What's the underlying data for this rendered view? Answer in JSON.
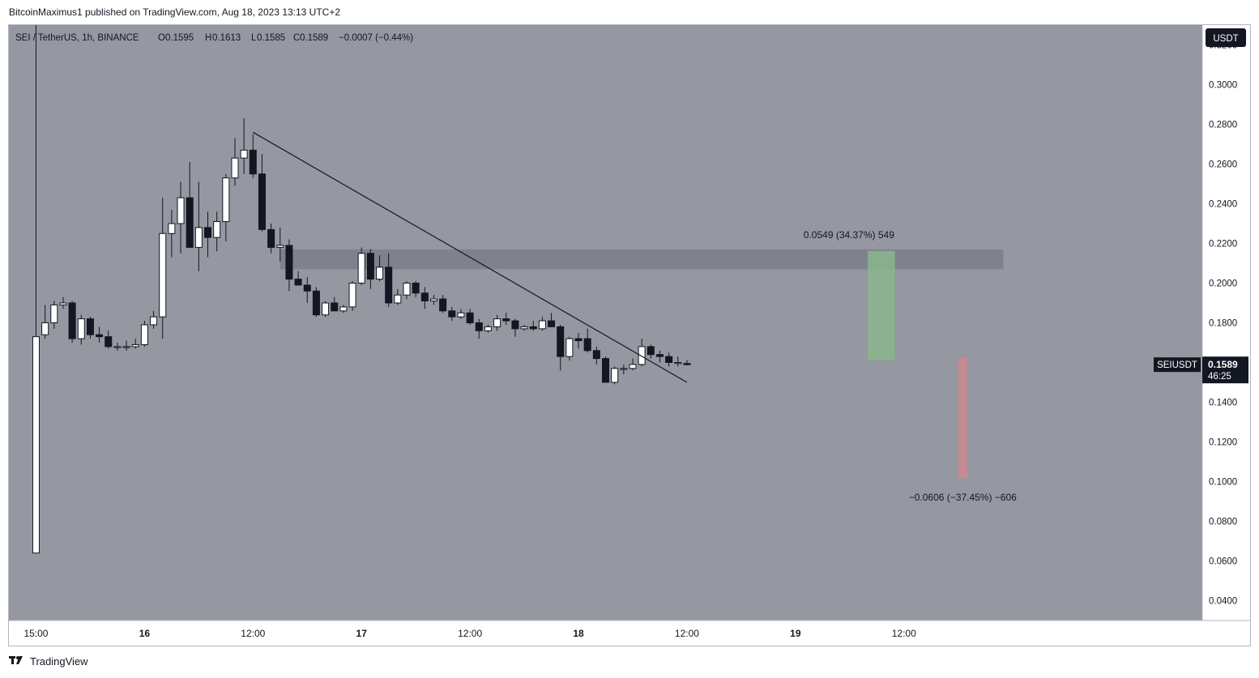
{
  "attribution": "BitcoinMaximus1 published on TradingView.com, Aug 18, 2023 13:13 UTC+2",
  "footer": {
    "brand": "TradingView",
    "logo_icon": "tradingview-logo-icon"
  },
  "colors": {
    "background": "#9598a1",
    "up_body": "#ffffff",
    "down_body": "#131722",
    "wick": "#131722",
    "zone": "#787b86",
    "long_target": "#8ab48c",
    "short_target": "#c98a8f",
    "label_bg": "#131722"
  },
  "legend": {
    "symbol": "SEI / TetherUS, 1h, BINANCE",
    "o_label": "O",
    "o_value": "0.1595",
    "h_label": "H",
    "h_value": "0.1613",
    "l_label": "L",
    "l_value": "0.1585",
    "c_label": "C",
    "c_value": "0.1589",
    "change": "−0.0007 (−0.44%)"
  },
  "currency_button": "USDT",
  "price_tag": {
    "symbol": "SEIUSDT",
    "price": "0.1589",
    "countdown": "46:25"
  },
  "measure_up": "0.0549 (34.37%) 549",
  "measure_down": "−0.0606 (−37.45%) −606",
  "chart_data": {
    "type": "candlestick",
    "symbol": "SEI / TetherUS",
    "interval": "1h",
    "exchange": "BINANCE",
    "y_axis": {
      "min": 0.03,
      "max": 0.33,
      "ticks": [
        "0.0400",
        "0.0600",
        "0.0800",
        "0.1000",
        "0.1200",
        "0.1400",
        "0.1600",
        "0.1800",
        "0.2000",
        "0.2200",
        "0.2400",
        "0.2600",
        "0.2800",
        "0.3000",
        "0.3200"
      ],
      "tick_values": [
        0.04,
        0.06,
        0.08,
        0.1,
        0.12,
        0.14,
        0.16,
        0.18,
        0.2,
        0.22,
        0.24,
        0.26,
        0.28,
        0.3,
        0.32
      ]
    },
    "x_axis": {
      "bar_min": -3,
      "bar_max": 129,
      "ticks": [
        {
          "label": "15:00",
          "bar": 0
        },
        {
          "label": "16",
          "bar": 12
        },
        {
          "label": "12:00",
          "bar": 24
        },
        {
          "label": "17",
          "bar": 36
        },
        {
          "label": "12:00",
          "bar": 48
        },
        {
          "label": "18",
          "bar": 60
        },
        {
          "label": "12:00",
          "bar": 72
        },
        {
          "label": "19",
          "bar": 84
        },
        {
          "label": "12:00",
          "bar": 96
        }
      ]
    },
    "candles": [
      {
        "o": 0.064,
        "h": 0.33,
        "l": 0.064,
        "c": 0.173
      },
      {
        "o": 0.174,
        "h": 0.189,
        "l": 0.172,
        "c": 0.18
      },
      {
        "o": 0.18,
        "h": 0.191,
        "l": 0.177,
        "c": 0.189
      },
      {
        "o": 0.189,
        "h": 0.193,
        "l": 0.187,
        "c": 0.19
      },
      {
        "o": 0.19,
        "h": 0.191,
        "l": 0.17,
        "c": 0.172
      },
      {
        "o": 0.172,
        "h": 0.184,
        "l": 0.169,
        "c": 0.182
      },
      {
        "o": 0.182,
        "h": 0.183,
        "l": 0.172,
        "c": 0.174
      },
      {
        "o": 0.174,
        "h": 0.178,
        "l": 0.17,
        "c": 0.173
      },
      {
        "o": 0.173,
        "h": 0.176,
        "l": 0.167,
        "c": 0.168
      },
      {
        "o": 0.168,
        "h": 0.17,
        "l": 0.166,
        "c": 0.168
      },
      {
        "o": 0.168,
        "h": 0.171,
        "l": 0.166,
        "c": 0.168
      },
      {
        "o": 0.168,
        "h": 0.172,
        "l": 0.167,
        "c": 0.169
      },
      {
        "o": 0.169,
        "h": 0.181,
        "l": 0.168,
        "c": 0.179
      },
      {
        "o": 0.179,
        "h": 0.186,
        "l": 0.177,
        "c": 0.183
      },
      {
        "o": 0.183,
        "h": 0.243,
        "l": 0.172,
        "c": 0.225
      },
      {
        "o": 0.225,
        "h": 0.237,
        "l": 0.213,
        "c": 0.23
      },
      {
        "o": 0.23,
        "h": 0.251,
        "l": 0.215,
        "c": 0.243
      },
      {
        "o": 0.243,
        "h": 0.261,
        "l": 0.218,
        "c": 0.218
      },
      {
        "o": 0.218,
        "h": 0.251,
        "l": 0.206,
        "c": 0.228
      },
      {
        "o": 0.228,
        "h": 0.236,
        "l": 0.213,
        "c": 0.223
      },
      {
        "o": 0.223,
        "h": 0.236,
        "l": 0.216,
        "c": 0.231
      },
      {
        "o": 0.231,
        "h": 0.255,
        "l": 0.221,
        "c": 0.253
      },
      {
        "o": 0.253,
        "h": 0.273,
        "l": 0.249,
        "c": 0.263
      },
      {
        "o": 0.263,
        "h": 0.283,
        "l": 0.255,
        "c": 0.267
      },
      {
        "o": 0.267,
        "h": 0.275,
        "l": 0.253,
        "c": 0.255
      },
      {
        "o": 0.255,
        "h": 0.265,
        "l": 0.226,
        "c": 0.227
      },
      {
        "o": 0.227,
        "h": 0.23,
        "l": 0.215,
        "c": 0.218
      },
      {
        "o": 0.218,
        "h": 0.228,
        "l": 0.211,
        "c": 0.219
      },
      {
        "o": 0.219,
        "h": 0.222,
        "l": 0.196,
        "c": 0.202
      },
      {
        "o": 0.202,
        "h": 0.206,
        "l": 0.199,
        "c": 0.199
      },
      {
        "o": 0.199,
        "h": 0.203,
        "l": 0.19,
        "c": 0.196
      },
      {
        "o": 0.196,
        "h": 0.198,
        "l": 0.183,
        "c": 0.184
      },
      {
        "o": 0.184,
        "h": 0.191,
        "l": 0.183,
        "c": 0.19
      },
      {
        "o": 0.19,
        "h": 0.193,
        "l": 0.186,
        "c": 0.186
      },
      {
        "o": 0.186,
        "h": 0.189,
        "l": 0.185,
        "c": 0.188
      },
      {
        "o": 0.188,
        "h": 0.201,
        "l": 0.186,
        "c": 0.2
      },
      {
        "o": 0.2,
        "h": 0.218,
        "l": 0.199,
        "c": 0.215
      },
      {
        "o": 0.215,
        "h": 0.217,
        "l": 0.197,
        "c": 0.202
      },
      {
        "o": 0.202,
        "h": 0.214,
        "l": 0.201,
        "c": 0.208
      },
      {
        "o": 0.208,
        "h": 0.215,
        "l": 0.188,
        "c": 0.19
      },
      {
        "o": 0.19,
        "h": 0.197,
        "l": 0.189,
        "c": 0.194
      },
      {
        "o": 0.194,
        "h": 0.201,
        "l": 0.192,
        "c": 0.2
      },
      {
        "o": 0.2,
        "h": 0.201,
        "l": 0.193,
        "c": 0.195
      },
      {
        "o": 0.195,
        "h": 0.198,
        "l": 0.187,
        "c": 0.191
      },
      {
        "o": 0.191,
        "h": 0.194,
        "l": 0.189,
        "c": 0.192
      },
      {
        "o": 0.192,
        "h": 0.194,
        "l": 0.185,
        "c": 0.186
      },
      {
        "o": 0.186,
        "h": 0.188,
        "l": 0.181,
        "c": 0.183
      },
      {
        "o": 0.183,
        "h": 0.187,
        "l": 0.182,
        "c": 0.185
      },
      {
        "o": 0.185,
        "h": 0.187,
        "l": 0.179,
        "c": 0.18
      },
      {
        "o": 0.18,
        "h": 0.182,
        "l": 0.172,
        "c": 0.176
      },
      {
        "o": 0.176,
        "h": 0.179,
        "l": 0.175,
        "c": 0.178
      },
      {
        "o": 0.178,
        "h": 0.184,
        "l": 0.176,
        "c": 0.182
      },
      {
        "o": 0.182,
        "h": 0.185,
        "l": 0.179,
        "c": 0.181
      },
      {
        "o": 0.181,
        "h": 0.182,
        "l": 0.173,
        "c": 0.177
      },
      {
        "o": 0.177,
        "h": 0.179,
        "l": 0.176,
        "c": 0.178
      },
      {
        "o": 0.178,
        "h": 0.181,
        "l": 0.176,
        "c": 0.177
      },
      {
        "o": 0.177,
        "h": 0.183,
        "l": 0.176,
        "c": 0.181
      },
      {
        "o": 0.181,
        "h": 0.185,
        "l": 0.178,
        "c": 0.178
      },
      {
        "o": 0.178,
        "h": 0.179,
        "l": 0.156,
        "c": 0.163
      },
      {
        "o": 0.163,
        "h": 0.173,
        "l": 0.161,
        "c": 0.172
      },
      {
        "o": 0.172,
        "h": 0.175,
        "l": 0.167,
        "c": 0.171
      },
      {
        "o": 0.172,
        "h": 0.177,
        "l": 0.165,
        "c": 0.166
      },
      {
        "o": 0.166,
        "h": 0.168,
        "l": 0.159,
        "c": 0.162
      },
      {
        "o": 0.162,
        "h": 0.163,
        "l": 0.15,
        "c": 0.15
      },
      {
        "o": 0.15,
        "h": 0.158,
        "l": 0.149,
        "c": 0.157
      },
      {
        "o": 0.157,
        "h": 0.159,
        "l": 0.154,
        "c": 0.157
      },
      {
        "o": 0.157,
        "h": 0.162,
        "l": 0.156,
        "c": 0.159
      },
      {
        "o": 0.159,
        "h": 0.172,
        "l": 0.158,
        "c": 0.168
      },
      {
        "o": 0.168,
        "h": 0.169,
        "l": 0.162,
        "c": 0.164
      },
      {
        "o": 0.164,
        "h": 0.166,
        "l": 0.16,
        "c": 0.163
      },
      {
        "o": 0.163,
        "h": 0.165,
        "l": 0.158,
        "c": 0.16
      },
      {
        "o": 0.16,
        "h": 0.163,
        "l": 0.158,
        "c": 0.16
      },
      {
        "o": 0.1595,
        "h": 0.1613,
        "l": 0.1585,
        "c": 0.1589
      }
    ],
    "trendline": {
      "from": {
        "bar": 24,
        "price": 0.276
      },
      "to": {
        "bar": 72,
        "price": 0.15
      }
    },
    "resistance_zone": {
      "from_bar": 27,
      "to_bar": 107,
      "top": 0.217,
      "bottom": 0.207
    },
    "long_measure": {
      "from_bar": 92,
      "to_bar": 95,
      "bottom": 0.1613,
      "top": 0.2162,
      "label": "0.0549 (34.37%) 549"
    },
    "short_measure": {
      "from_bar": 102,
      "to_bar": 103,
      "top": 0.1624,
      "bottom": 0.1018,
      "label": "−0.0606 (−37.45%) −606"
    },
    "last_price": 0.1589
  }
}
